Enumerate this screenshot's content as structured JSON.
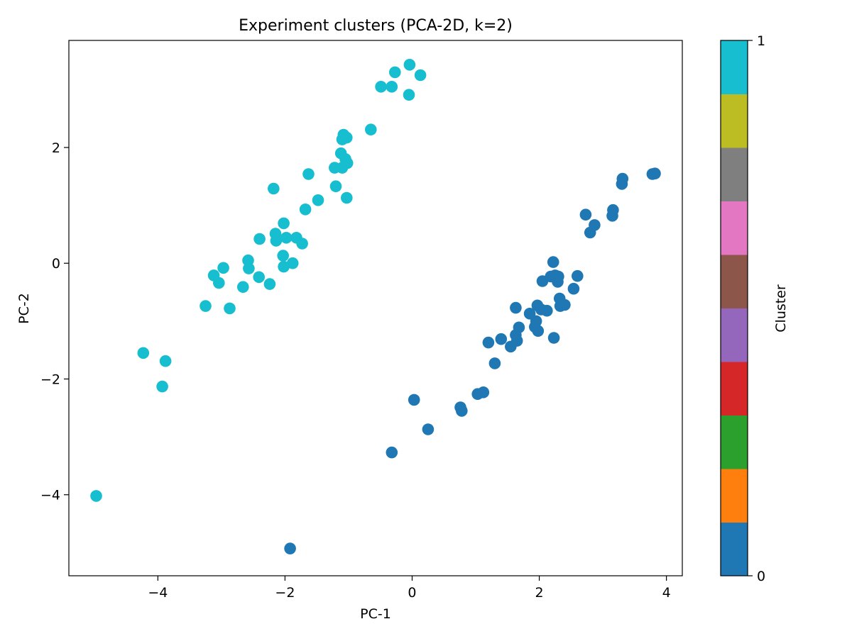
{
  "chart_data": {
    "type": "scatter",
    "title": "Experiment clusters (PCA-2D, k=2)",
    "xlabel": "PC-1",
    "ylabel": "PC-2",
    "xlim": [
      -5.4,
      4.25
    ],
    "ylim": [
      -5.4,
      3.85
    ],
    "xticks": [
      -4,
      -2,
      0,
      2,
      4
    ],
    "yticks": [
      -4,
      -2,
      0,
      2
    ],
    "grid": false,
    "colorbar": {
      "label": "Cluster",
      "ticks": [
        0,
        1
      ],
      "colormap": "tab10",
      "colors": [
        "#1f77b4",
        "#ff7f0e",
        "#2ca02c",
        "#d62728",
        "#9467bd",
        "#8c564b",
        "#e377c2",
        "#7f7f7f",
        "#bcbd22",
        "#17becf"
      ]
    },
    "series": [
      {
        "cluster": 0,
        "color": "#1f77b4",
        "points": [
          [
            -1.92,
            -4.93
          ],
          [
            -0.32,
            -3.27
          ],
          [
            0.03,
            -2.36
          ],
          [
            0.25,
            -2.87
          ],
          [
            0.76,
            -2.49
          ],
          [
            0.78,
            -2.55
          ],
          [
            1.03,
            -2.26
          ],
          [
            1.12,
            -2.23
          ],
          [
            1.3,
            -1.73
          ],
          [
            1.2,
            -1.37
          ],
          [
            1.4,
            -1.31
          ],
          [
            1.55,
            -1.44
          ],
          [
            1.63,
            -1.24
          ],
          [
            1.65,
            -1.34
          ],
          [
            1.68,
            -1.11
          ],
          [
            1.63,
            -0.77
          ],
          [
            1.85,
            -0.87
          ],
          [
            1.93,
            -1.1
          ],
          [
            1.98,
            -1.17
          ],
          [
            1.95,
            -1.0
          ],
          [
            1.97,
            -0.73
          ],
          [
            2.03,
            -0.8
          ],
          [
            2.12,
            -0.82
          ],
          [
            2.23,
            -1.29
          ],
          [
            2.05,
            -0.31
          ],
          [
            2.18,
            -0.23
          ],
          [
            2.25,
            -0.21
          ],
          [
            2.3,
            -0.23
          ],
          [
            2.29,
            -0.32
          ],
          [
            2.32,
            -0.61
          ],
          [
            2.33,
            -0.74
          ],
          [
            2.4,
            -0.72
          ],
          [
            2.22,
            0.02
          ],
          [
            2.54,
            -0.44
          ],
          [
            2.6,
            -0.22
          ],
          [
            2.73,
            0.84
          ],
          [
            2.8,
            0.53
          ],
          [
            2.87,
            0.66
          ],
          [
            3.15,
            0.82
          ],
          [
            3.16,
            0.92
          ],
          [
            3.3,
            1.37
          ],
          [
            3.31,
            1.46
          ],
          [
            3.78,
            1.54
          ],
          [
            3.82,
            1.55
          ]
        ]
      },
      {
        "cluster": 1,
        "color": "#17becf",
        "points": [
          [
            -4.97,
            -4.02
          ],
          [
            -3.93,
            -2.13
          ],
          [
            -4.23,
            -1.55
          ],
          [
            -3.88,
            -1.69
          ],
          [
            -3.25,
            -0.74
          ],
          [
            -2.87,
            -0.78
          ],
          [
            -3.12,
            -0.21
          ],
          [
            -3.04,
            -0.34
          ],
          [
            -2.97,
            -0.08
          ],
          [
            -2.66,
            -0.41
          ],
          [
            -2.58,
            0.05
          ],
          [
            -2.57,
            -0.09
          ],
          [
            -2.41,
            -0.24
          ],
          [
            -2.4,
            0.42
          ],
          [
            -2.24,
            -0.36
          ],
          [
            -2.18,
            1.29
          ],
          [
            -2.15,
            0.51
          ],
          [
            -2.14,
            0.39
          ],
          [
            -2.02,
            0.69
          ],
          [
            -2.03,
            0.13
          ],
          [
            -2.02,
            -0.06
          ],
          [
            -1.98,
            0.44
          ],
          [
            -1.88,
            0.0
          ],
          [
            -1.82,
            0.44
          ],
          [
            -1.73,
            0.34
          ],
          [
            -1.68,
            0.93
          ],
          [
            -1.63,
            1.54
          ],
          [
            -1.48,
            1.09
          ],
          [
            -1.22,
            1.65
          ],
          [
            -1.2,
            1.33
          ],
          [
            -1.12,
            1.9
          ],
          [
            -1.1,
            1.65
          ],
          [
            -1.05,
            1.8
          ],
          [
            -1.02,
            1.73
          ],
          [
            -1.03,
            1.13
          ],
          [
            -1.1,
            2.14
          ],
          [
            -1.08,
            2.22
          ],
          [
            -1.03,
            2.17
          ],
          [
            -0.65,
            2.31
          ],
          [
            -0.49,
            3.05
          ],
          [
            -0.32,
            3.05
          ],
          [
            -0.27,
            3.3
          ],
          [
            -0.05,
            2.91
          ],
          [
            -0.04,
            3.43
          ],
          [
            0.13,
            3.25
          ]
        ]
      }
    ]
  }
}
